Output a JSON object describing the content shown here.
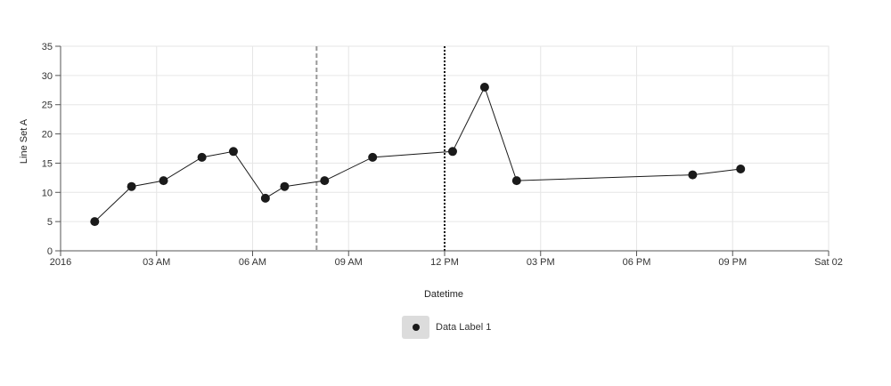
{
  "chart_data": {
    "type": "scatter",
    "xlabel": "Datetime",
    "ylabel": "Line Set A",
    "ylim": [
      0,
      35
    ],
    "yticks": [
      0,
      5,
      10,
      15,
      20,
      25,
      30,
      35
    ],
    "x_tick_labels": [
      "2016",
      "03 AM",
      "06 AM",
      "09 AM",
      "12 PM",
      "03 PM",
      "06 PM",
      "09 PM",
      "Sat 02"
    ],
    "x_tick_times": [
      "00:00",
      "03:00",
      "06:00",
      "09:00",
      "12:00",
      "15:00",
      "18:00",
      "21:00",
      "24:00"
    ],
    "xlim": [
      "00:00",
      "24:00"
    ],
    "grid": true,
    "legend_position": "bottom-center",
    "series": [
      {
        "name": "Data Label 1",
        "color": "#1a1a1a",
        "points": [
          {
            "x": "01:04",
            "y": 5
          },
          {
            "x": "02:13",
            "y": 11
          },
          {
            "x": "03:13",
            "y": 12
          },
          {
            "x": "04:25",
            "y": 16
          },
          {
            "x": "05:24",
            "y": 17
          },
          {
            "x": "06:24",
            "y": 9
          },
          {
            "x": "07:00",
            "y": 11
          },
          {
            "x": "08:15",
            "y": 12
          },
          {
            "x": "09:45",
            "y": 16
          },
          {
            "x": "12:15",
            "y": 17
          },
          {
            "x": "13:15",
            "y": 28
          },
          {
            "x": "14:15",
            "y": 12
          },
          {
            "x": "19:45",
            "y": 13
          },
          {
            "x": "21:15",
            "y": 14
          }
        ]
      }
    ],
    "reference_lines": [
      {
        "x": "08:00",
        "style": "dashed",
        "color": "#999999"
      },
      {
        "x": "12:00",
        "style": "dotted",
        "color": "#111111"
      }
    ]
  }
}
